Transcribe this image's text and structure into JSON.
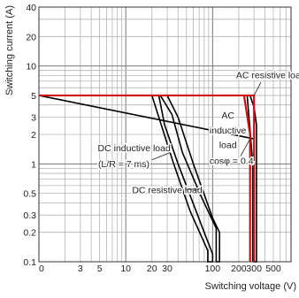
{
  "chart_data": {
    "type": "line",
    "xlabel": "Switching voltage (V)",
    "ylabel": "Switching current (A)",
    "xscale": "log",
    "yscale": "log",
    "xlim": [
      1,
      800
    ],
    "ylim": [
      0.1,
      40
    ],
    "x_ticks": [
      "0",
      "3",
      "5",
      "10",
      "20",
      "30",
      "100",
      "200",
      "300",
      "500"
    ],
    "y_ticks": [
      "0.1",
      "0.2",
      "0.3",
      "0.5",
      "1",
      "2",
      "3",
      "5",
      "10",
      "20",
      "40"
    ],
    "grid": true,
    "series": [
      {
        "name": "AC resistive load",
        "color": "#000000",
        "points": [
          [
            1,
            5
          ],
          [
            270,
            5
          ],
          [
            300,
            1.8
          ],
          [
            300,
            0.1
          ]
        ],
        "outline": [
          [
            1,
            5
          ],
          [
            270,
            5
          ],
          [
            300,
            3.8
          ],
          [
            320,
            2.5
          ],
          [
            320,
            0.1
          ],
          [
            300,
            0.1
          ],
          [
            300,
            1.8
          ]
        ]
      },
      {
        "name": "AC inductive load cosφ = 0.4",
        "color": "#000000",
        "points": [
          [
            250,
            5
          ],
          [
            270,
            2.2
          ],
          [
            290,
            1.0
          ],
          [
            290,
            0.1
          ]
        ]
      },
      {
        "name": "DC inductive load (L/R = 7 ms)",
        "color": "#000000",
        "points": [
          [
            24,
            5
          ],
          [
            28,
            2.5
          ],
          [
            40,
            1.0
          ],
          [
            80,
            0.2
          ],
          [
            100,
            0.12
          ],
          [
            100,
            0.1
          ]
        ],
        "outline": [
          [
            24,
            5
          ],
          [
            28,
            2.5
          ],
          [
            40,
            1.0
          ],
          [
            80,
            0.2
          ],
          [
            100,
            0.12
          ],
          [
            100,
            0.1
          ],
          [
            88,
            0.1
          ],
          [
            88,
            0.13
          ],
          [
            55,
            0.33
          ],
          [
            35,
            1.05
          ],
          [
            20,
            5
          ]
        ]
      },
      {
        "name": "DC resistive load",
        "color": "#000000",
        "points": [
          [
            30,
            5
          ],
          [
            40,
            3
          ],
          [
            60,
            1.0
          ],
          [
            100,
            0.28
          ],
          [
            120,
            0.2
          ],
          [
            120,
            0.1
          ]
        ],
        "outline": [
          [
            30,
            5
          ],
          [
            40,
            3
          ],
          [
            60,
            1.0
          ],
          [
            100,
            0.28
          ],
          [
            120,
            0.2
          ],
          [
            120,
            0.1
          ],
          [
            110,
            0.1
          ],
          [
            110,
            0.22
          ],
          [
            75,
            0.45
          ],
          [
            45,
            1.3
          ],
          [
            34,
            3.2
          ],
          [
            25,
            5
          ]
        ]
      },
      {
        "name": "",
        "color": "#d01010",
        "points": [
          [
            1,
            5
          ],
          [
            300,
            5
          ],
          [
            300,
            0.1
          ]
        ]
      },
      {
        "name": "",
        "color": "#d01010",
        "points": [
          [
            230,
            5
          ],
          [
            270,
            2.0
          ],
          [
            270,
            0.1
          ]
        ]
      }
    ],
    "annotations": [
      {
        "text": "AC resistive load",
        "at": [
          470,
          7.5
        ]
      },
      {
        "text": "AC",
        "at": [
          150,
          2.9
        ]
      },
      {
        "text": "inductive",
        "at": [
          150,
          2.05
        ]
      },
      {
        "text": "load",
        "at": [
          150,
          1.45
        ]
      },
      {
        "text": "cosφ = 0.4",
        "at": [
          165,
          1.0
        ]
      },
      {
        "text": "DC inductive load",
        "at": [
          12.5,
          1.35
        ]
      },
      {
        "text": "(L/R = 7 ms)",
        "at": [
          9.5,
          0.93
        ]
      },
      {
        "text": "DC resistive load",
        "at": [
          30,
          0.5
        ]
      }
    ]
  }
}
